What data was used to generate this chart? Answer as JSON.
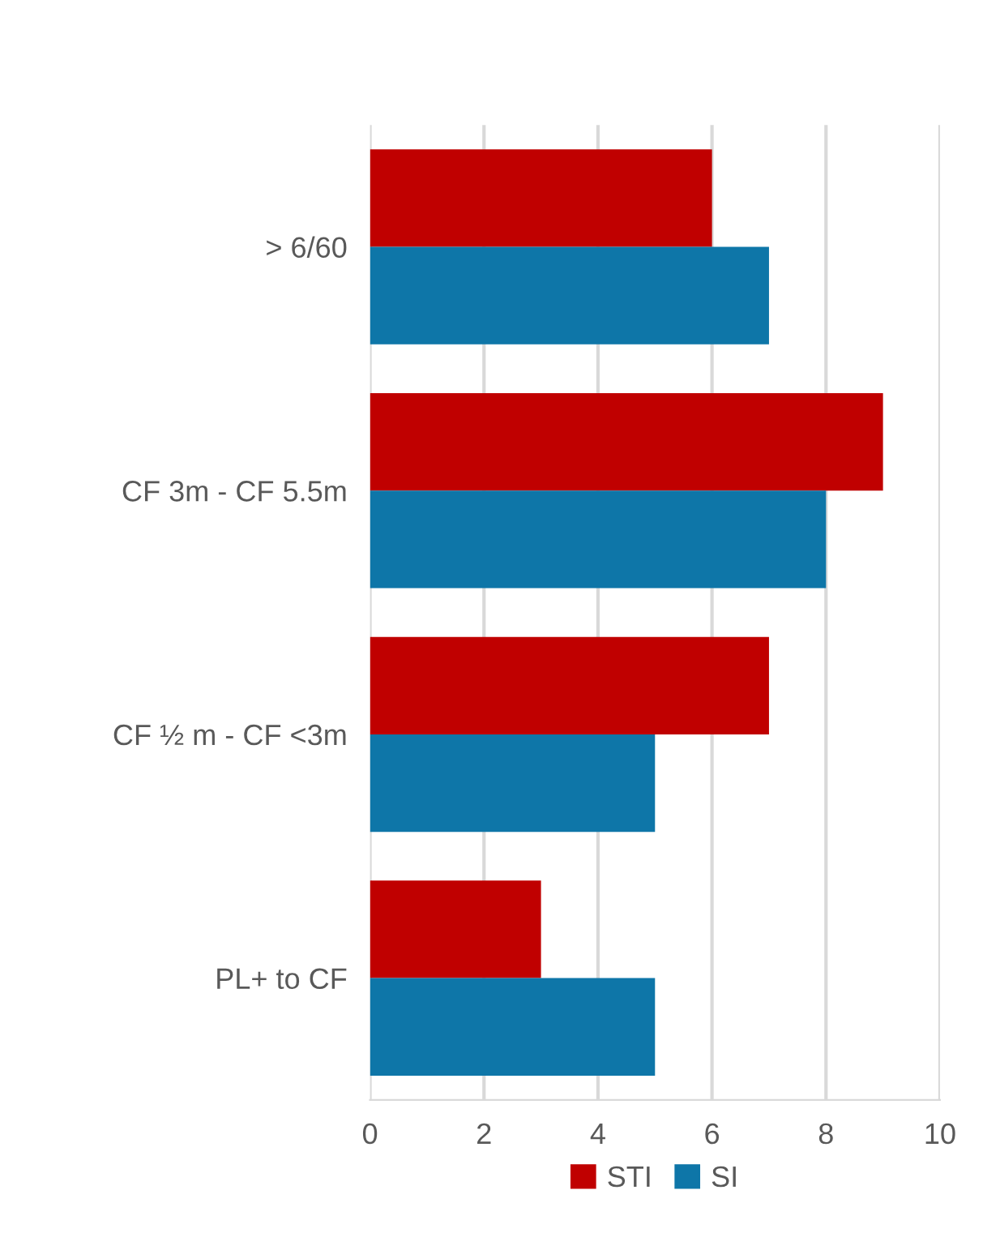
{
  "chart_data": {
    "type": "bar",
    "orientation": "horizontal",
    "categories": [
      "> 6/60",
      "CF 3m - CF 5.5m",
      "CF ½ m - CF <3m",
      "PL+ to CF"
    ],
    "series": [
      {
        "name": "STI",
        "color": "#c00000",
        "values": [
          6,
          9,
          7,
          3
        ]
      },
      {
        "name": "SI",
        "color": "#0e76a8",
        "values": [
          7,
          8,
          5,
          5
        ]
      }
    ],
    "xlim": [
      0,
      10
    ],
    "xticks": [
      0,
      2,
      4,
      6,
      8,
      10
    ],
    "grid": "x",
    "legend": "bottom"
  }
}
